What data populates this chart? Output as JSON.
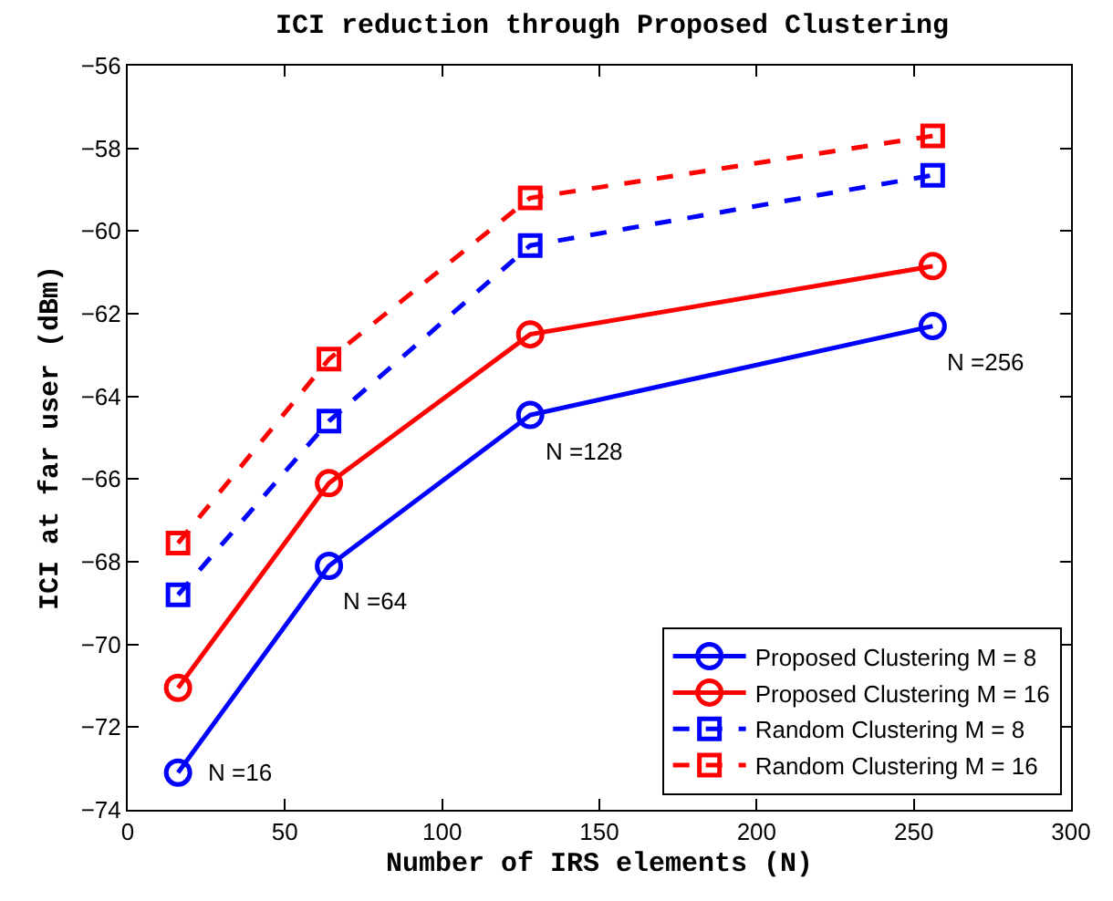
{
  "chart_data": {
    "type": "line",
    "title": "ICI reduction through Proposed Clustering",
    "xlabel": "Number of IRS elements (N)",
    "ylabel": "ICI at far user (dBm)",
    "x": [
      16,
      64,
      128,
      256
    ],
    "series": [
      {
        "name": "Proposed Clustering M = 8",
        "color": "#0000ff",
        "values": [
          -73.1,
          -68.1,
          -64.45,
          -62.3
        ],
        "marker": "circle",
        "line_style": "solid"
      },
      {
        "name": "Proposed Clustering M = 16",
        "color": "#ff0000",
        "values": [
          -71.05,
          -66.1,
          -62.5,
          -60.85
        ],
        "marker": "circle",
        "line_style": "solid"
      },
      {
        "name": "Random Clustering M = 8",
        "color": "#0000ff",
        "values": [
          -68.8,
          -64.6,
          -60.35,
          -58.65
        ],
        "marker": "square",
        "line_style": "dashed"
      },
      {
        "name": "Random Clustering M = 16",
        "color": "#ff0000",
        "values": [
          -67.55,
          -63.1,
          -59.2,
          -57.7
        ],
        "marker": "square",
        "line_style": "dashed"
      }
    ],
    "annotations": [
      {
        "text": "N =16",
        "x": 16,
        "y": -73.1
      },
      {
        "text": "N =64",
        "x": 64,
        "y": -68.1
      },
      {
        "text": "N =128",
        "x": 128,
        "y": -64.45
      },
      {
        "text": "N =256",
        "x": 256,
        "y": -62.3
      }
    ],
    "xlim": [
      0,
      300
    ],
    "xticks": [
      0,
      50,
      100,
      150,
      200,
      250,
      300
    ],
    "ylim": [
      -74,
      -56
    ],
    "yticks": [
      -74,
      -72,
      -70,
      -68,
      -66,
      -64,
      -62,
      -60,
      -58,
      -56
    ],
    "legend": "bottom right"
  }
}
